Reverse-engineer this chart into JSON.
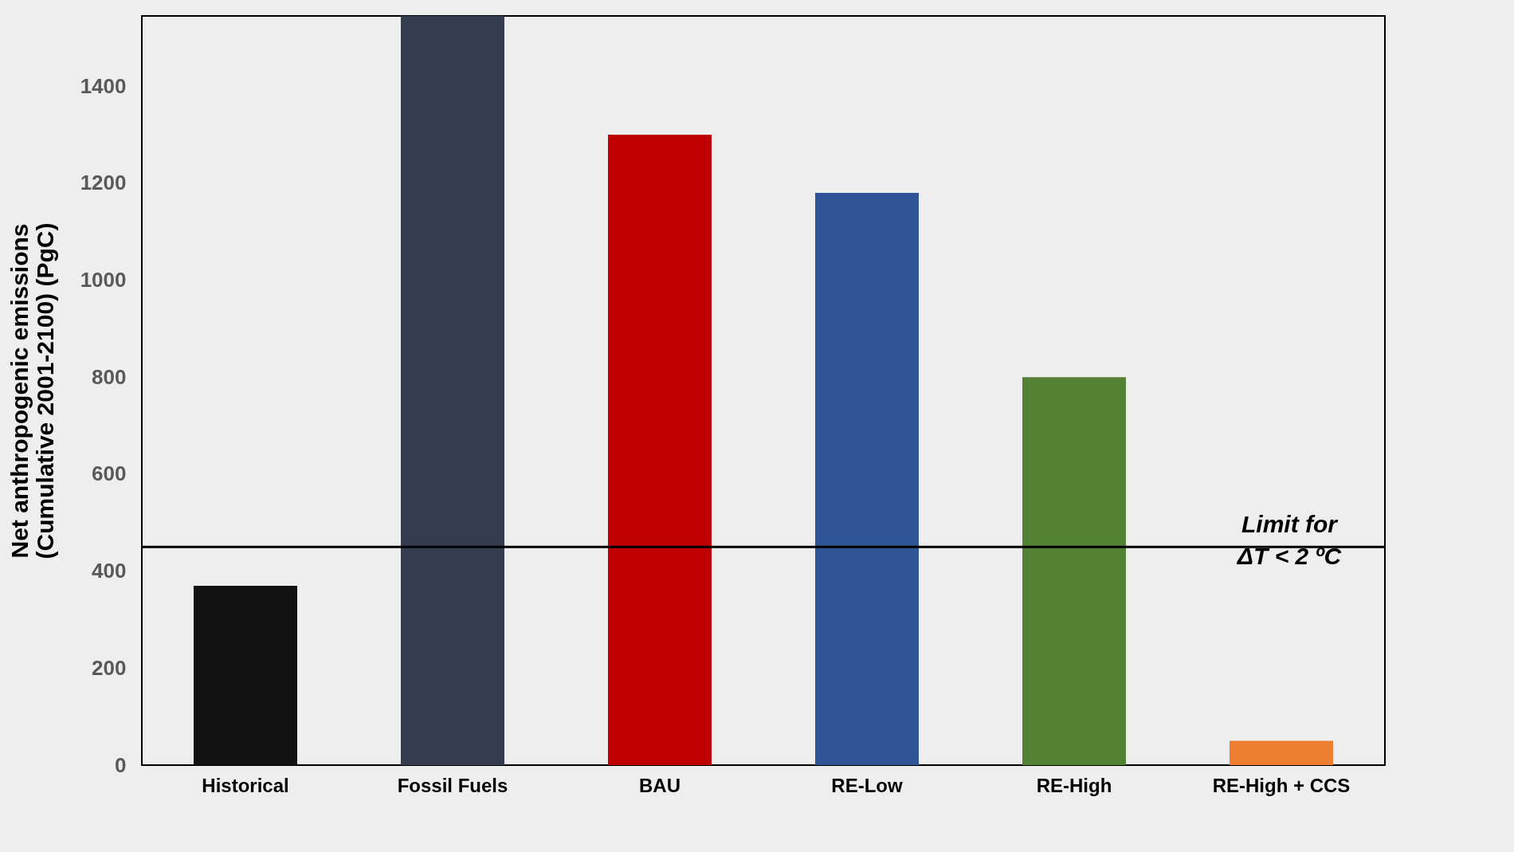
{
  "chart_data": {
    "type": "bar",
    "ylabel": "Net anthropogenic emissions\n(Cumulative 2001-2100) (PgC)",
    "categories": [
      "Historical",
      "Fossil Fuels",
      "BAU",
      "RE-Low",
      "RE-High",
      "RE-High + CCS"
    ],
    "values": [
      370,
      1545,
      1300,
      1180,
      800,
      50
    ],
    "colors": [
      "#111111",
      "#333d4f",
      "#c00000",
      "#2f5597",
      "#548235",
      "#ed7d31"
    ],
    "ylim": [
      0,
      1545
    ],
    "yticks": [
      0,
      200,
      400,
      600,
      800,
      1000,
      1200,
      1400
    ],
    "grid": false,
    "ref_lines": [
      {
        "axis": "y",
        "value": 450,
        "label": "Limit for\nΔT < 2 ºC",
        "color": "#000000",
        "line_style": "solid"
      }
    ]
  }
}
